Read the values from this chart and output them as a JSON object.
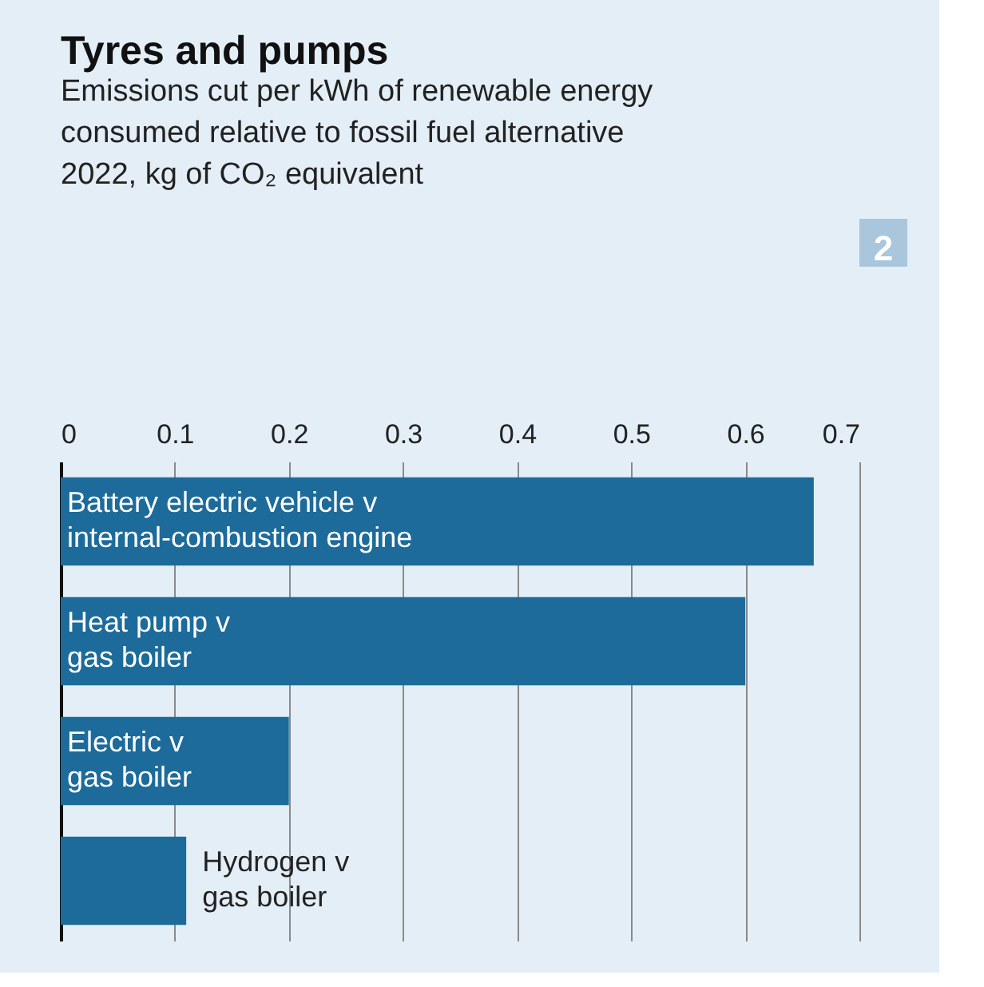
{
  "chart_data": {
    "type": "bar",
    "orientation": "horizontal",
    "title": "Tyres and pumps",
    "subtitle": [
      "Emissions cut per kWh of renewable energy",
      "consumed relative to fossil fuel alternative",
      "2022, kg of CO₂ equivalent"
    ],
    "categories": [
      "Battery electric vehicle v internal-combustion engine",
      "Heat pump v gas boiler",
      "Electric v gas boiler",
      "Hydrogen v gas boiler"
    ],
    "values": [
      0.66,
      0.6,
      0.2,
      0.11
    ],
    "color": "#1c6b9b",
    "xlim": [
      0,
      0.7
    ],
    "xticks": [
      0,
      0.1,
      0.2,
      0.3,
      0.4,
      0.5,
      0.6,
      0.7
    ],
    "grid": "x",
    "annotations": [
      "2"
    ]
  }
}
